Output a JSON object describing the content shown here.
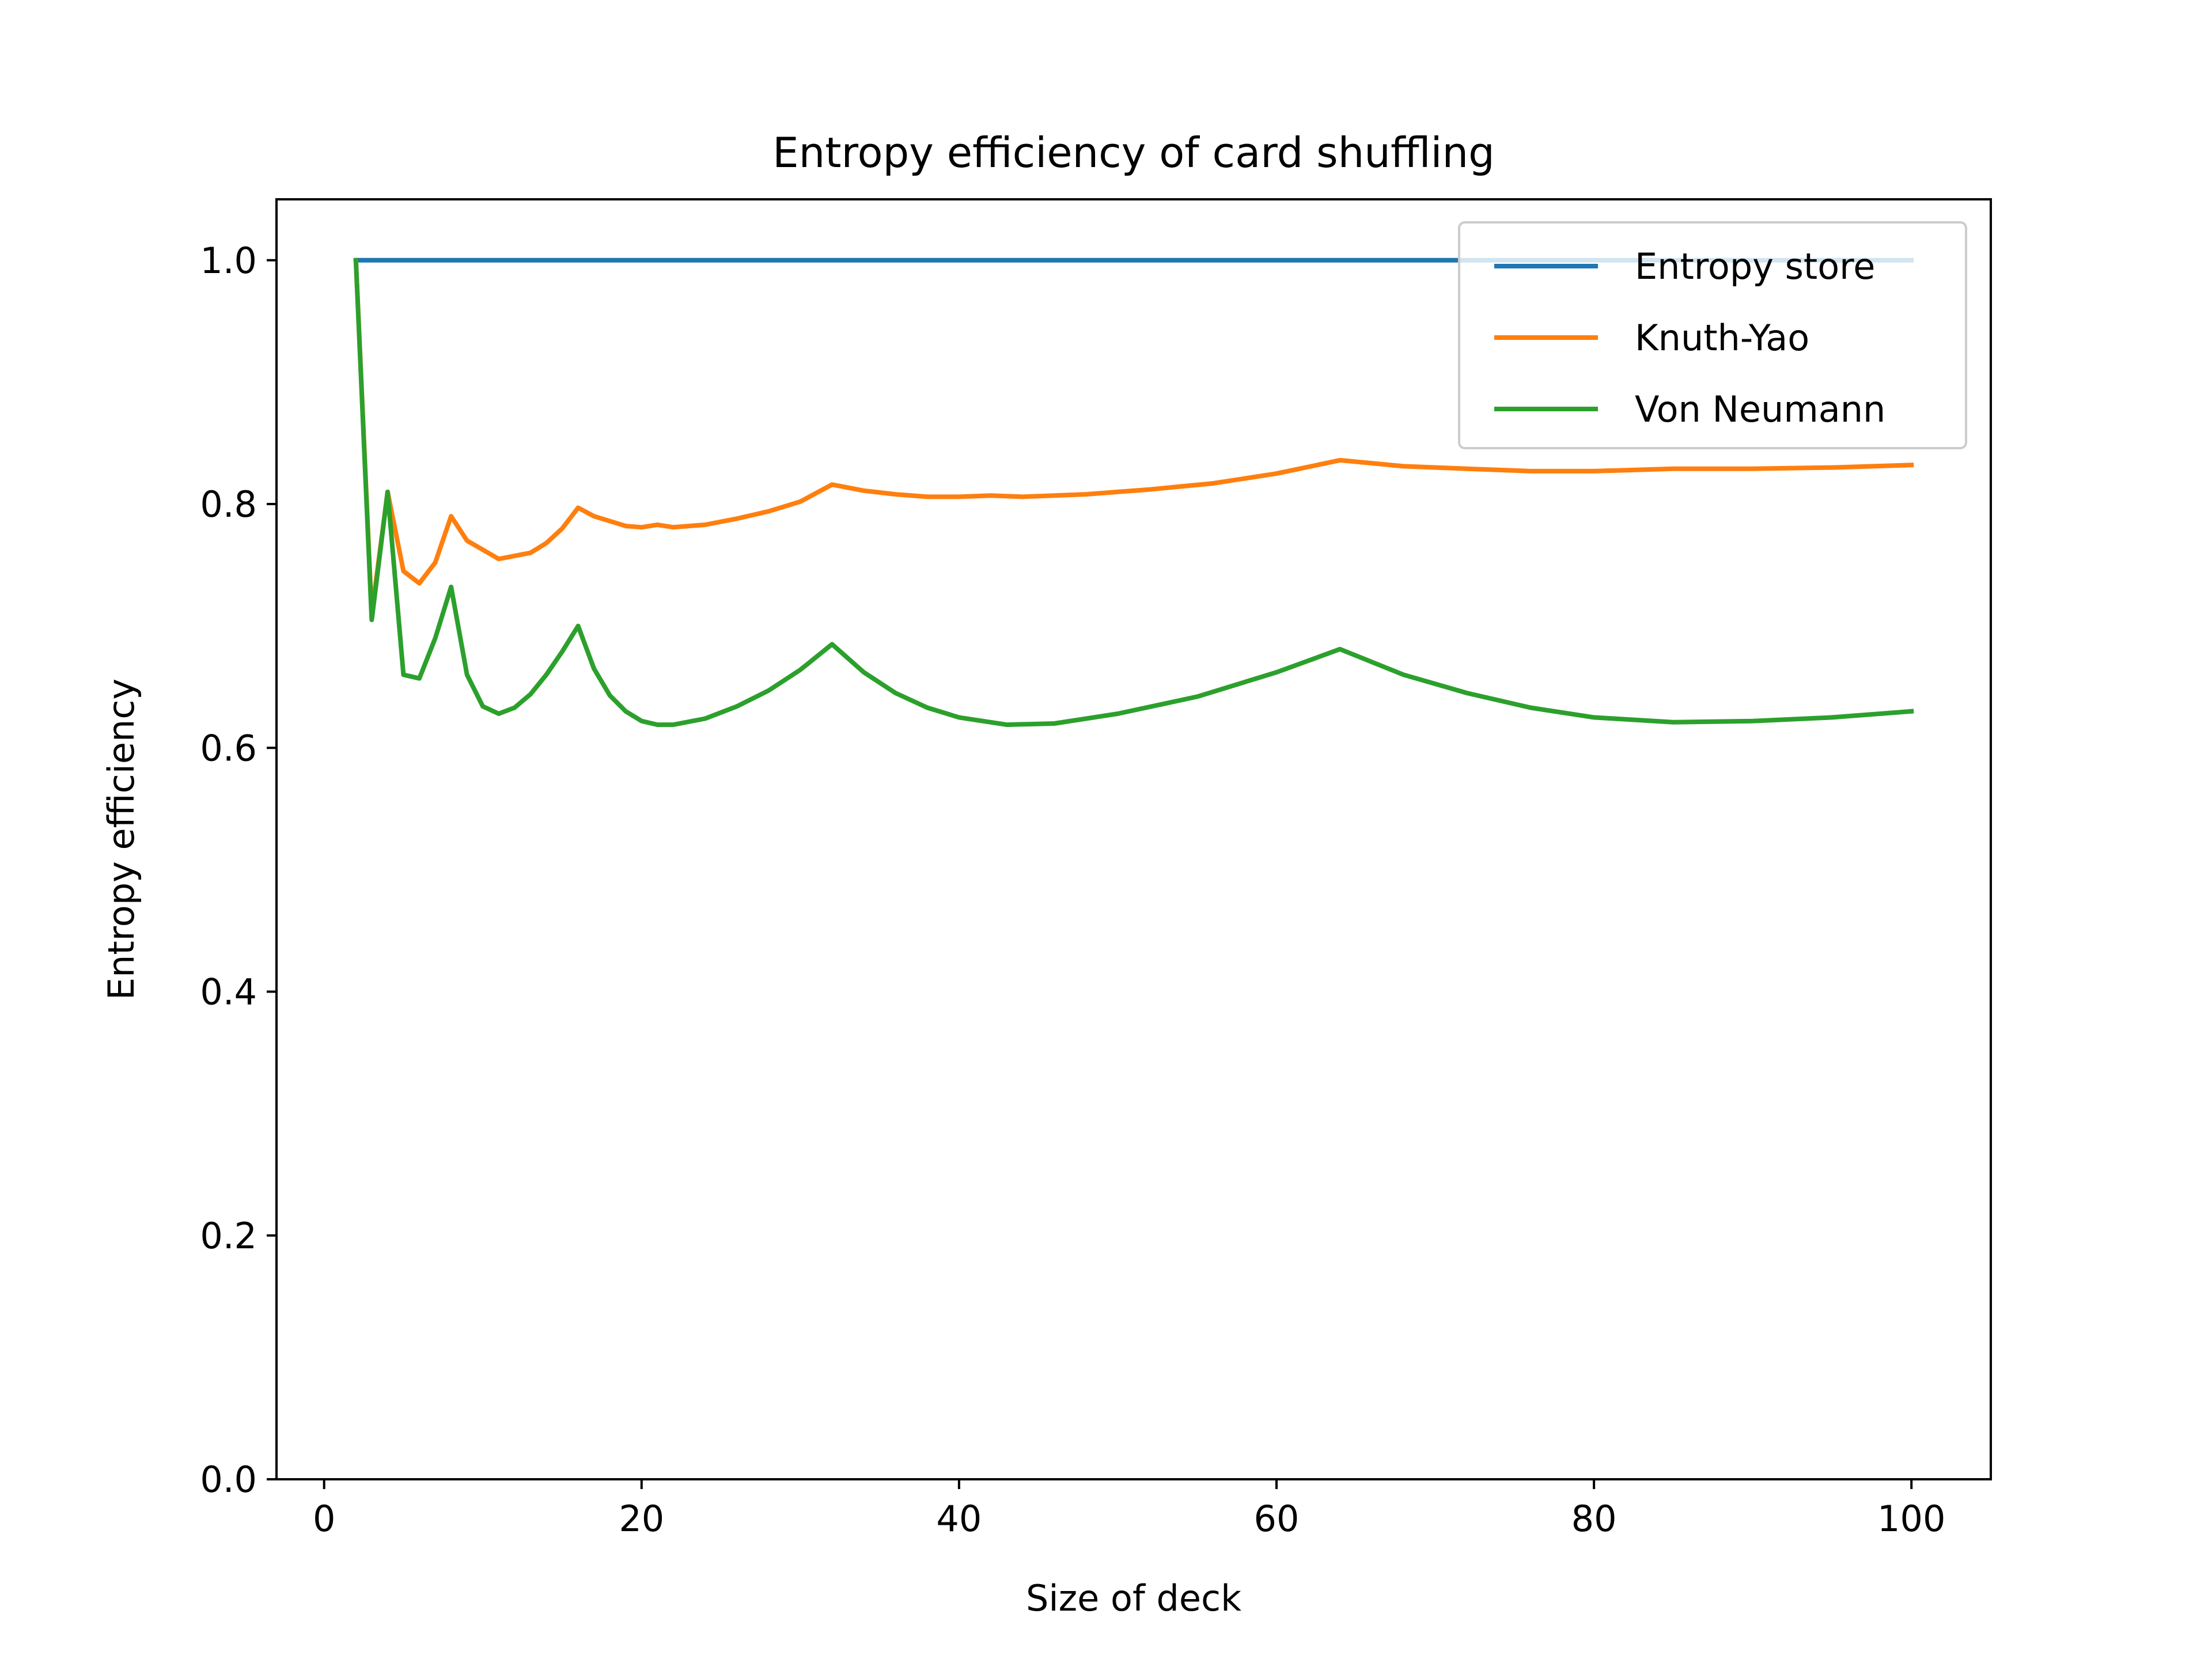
{
  "chart_data": {
    "type": "line",
    "title": "Entropy efficiency of card shuffling",
    "xlabel": "Size of deck",
    "ylabel": "Entropy efficiency",
    "xlim": [
      -3,
      105
    ],
    "ylim": [
      0.0,
      1.05
    ],
    "xticks": [
      0,
      20,
      40,
      60,
      80,
      100
    ],
    "xtick_labels": [
      "0",
      "20",
      "40",
      "60",
      "80",
      "100"
    ],
    "yticks": [
      0.0,
      0.2,
      0.4,
      0.6,
      0.8,
      1.0
    ],
    "ytick_labels": [
      "0.0",
      "0.2",
      "0.4",
      "0.6",
      "0.8",
      "1.0"
    ],
    "grid": false,
    "legend_position": "upper-right",
    "series": [
      {
        "name": "Entropy store",
        "color": "#1f77b4",
        "points": [
          [
            2,
            1.0
          ],
          [
            100,
            1.0
          ]
        ]
      },
      {
        "name": "Knuth-Yao",
        "color": "#ff7f0e",
        "points": [
          [
            2,
            1.0
          ],
          [
            3,
            0.71
          ],
          [
            4,
            0.81
          ],
          [
            5,
            0.745
          ],
          [
            6,
            0.735
          ],
          [
            7,
            0.752
          ],
          [
            8,
            0.79
          ],
          [
            9,
            0.77
          ],
          [
            11,
            0.755
          ],
          [
            13,
            0.76
          ],
          [
            14,
            0.768
          ],
          [
            15,
            0.78
          ],
          [
            16,
            0.797
          ],
          [
            17,
            0.79
          ],
          [
            19,
            0.782
          ],
          [
            20,
            0.781
          ],
          [
            21,
            0.783
          ],
          [
            22,
            0.781
          ],
          [
            24,
            0.783
          ],
          [
            26,
            0.788
          ],
          [
            28,
            0.794
          ],
          [
            30,
            0.802
          ],
          [
            32,
            0.816
          ],
          [
            34,
            0.811
          ],
          [
            36,
            0.808
          ],
          [
            38,
            0.806
          ],
          [
            40,
            0.806
          ],
          [
            42,
            0.807
          ],
          [
            44,
            0.806
          ],
          [
            46,
            0.807
          ],
          [
            48,
            0.808
          ],
          [
            50,
            0.81
          ],
          [
            52,
            0.812
          ],
          [
            56,
            0.817
          ],
          [
            60,
            0.825
          ],
          [
            64,
            0.836
          ],
          [
            68,
            0.831
          ],
          [
            72,
            0.829
          ],
          [
            76,
            0.827
          ],
          [
            80,
            0.827
          ],
          [
            85,
            0.829
          ],
          [
            90,
            0.829
          ],
          [
            95,
            0.83
          ],
          [
            100,
            0.832
          ]
        ]
      },
      {
        "name": "Von Neumann",
        "color": "#2ca02c",
        "points": [
          [
            2,
            1.0
          ],
          [
            3,
            0.705
          ],
          [
            4,
            0.81
          ],
          [
            5,
            0.66
          ],
          [
            6,
            0.657
          ],
          [
            7,
            0.69
          ],
          [
            8,
            0.732
          ],
          [
            9,
            0.66
          ],
          [
            10,
            0.634
          ],
          [
            11,
            0.628
          ],
          [
            12,
            0.633
          ],
          [
            13,
            0.644
          ],
          [
            14,
            0.66
          ],
          [
            15,
            0.679
          ],
          [
            16,
            0.7
          ],
          [
            17,
            0.665
          ],
          [
            18,
            0.643
          ],
          [
            19,
            0.63
          ],
          [
            20,
            0.622
          ],
          [
            21,
            0.619
          ],
          [
            22,
            0.619
          ],
          [
            24,
            0.624
          ],
          [
            26,
            0.634
          ],
          [
            28,
            0.647
          ],
          [
            30,
            0.664
          ],
          [
            32,
            0.685
          ],
          [
            34,
            0.662
          ],
          [
            36,
            0.645
          ],
          [
            38,
            0.633
          ],
          [
            40,
            0.625
          ],
          [
            43,
            0.619
          ],
          [
            46,
            0.62
          ],
          [
            50,
            0.628
          ],
          [
            55,
            0.642
          ],
          [
            60,
            0.662
          ],
          [
            64,
            0.681
          ],
          [
            68,
            0.66
          ],
          [
            72,
            0.645
          ],
          [
            76,
            0.633
          ],
          [
            80,
            0.625
          ],
          [
            85,
            0.621
          ],
          [
            90,
            0.622
          ],
          [
            95,
            0.625
          ],
          [
            100,
            0.63
          ]
        ]
      }
    ]
  }
}
